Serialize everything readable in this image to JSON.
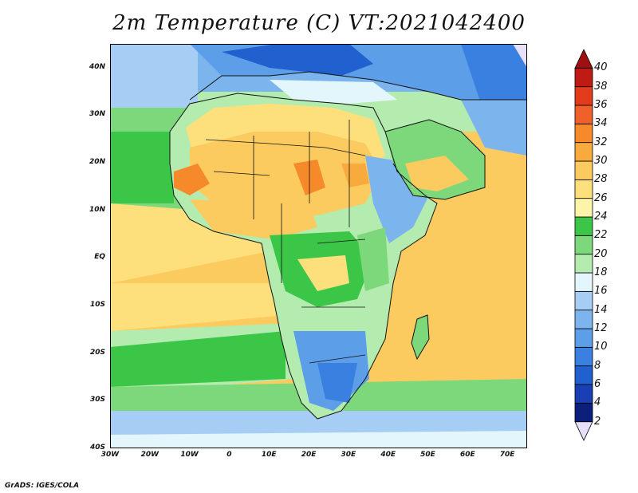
{
  "title": "2m Temperature (C) VT:2021042400",
  "footer": "GrADS: IGES/COLA",
  "map": {
    "type": "filled-contour",
    "variable": "2m Temperature",
    "units": "C",
    "valid_time": "2021042400",
    "lon_range": [
      -30,
      75
    ],
    "lat_range": [
      -40,
      45
    ],
    "lat_ticks": [
      {
        "value": 40,
        "label": "40N"
      },
      {
        "value": 30,
        "label": "30N"
      },
      {
        "value": 20,
        "label": "20N"
      },
      {
        "value": 10,
        "label": "10N"
      },
      {
        "value": 0,
        "label": "EQ"
      },
      {
        "value": -10,
        "label": "10S"
      },
      {
        "value": -20,
        "label": "20S"
      },
      {
        "value": -30,
        "label": "30S"
      },
      {
        "value": -40,
        "label": "40S"
      }
    ],
    "lon_ticks": [
      {
        "value": -30,
        "label": "30W"
      },
      {
        "value": -20,
        "label": "20W"
      },
      {
        "value": -10,
        "label": "10W"
      },
      {
        "value": 0,
        "label": "0"
      },
      {
        "value": 10,
        "label": "10E"
      },
      {
        "value": 20,
        "label": "20E"
      },
      {
        "value": 30,
        "label": "30E"
      },
      {
        "value": 40,
        "label": "40E"
      },
      {
        "value": 50,
        "label": "50E"
      },
      {
        "value": 60,
        "label": "60E"
      },
      {
        "value": 70,
        "label": "70E"
      }
    ]
  },
  "colorbar": {
    "levels": [
      2,
      4,
      6,
      8,
      10,
      12,
      14,
      16,
      18,
      20,
      22,
      24,
      26,
      28,
      30,
      32,
      34,
      36,
      38,
      40
    ],
    "colors": [
      "#e8e0fa",
      "#0c1f7a",
      "#1a3fb5",
      "#2060cf",
      "#3a80e0",
      "#5c9ee8",
      "#7cb4ee",
      "#a6cef5",
      "#e2f6fb",
      "#b4ecb0",
      "#7cd87a",
      "#3cc648",
      "#fcf4a8",
      "#fde07c",
      "#fccb60",
      "#f8ab3c",
      "#f68a2a",
      "#f0602a",
      "#e23c1c",
      "#c01a14",
      "#a01010"
    ]
  }
}
